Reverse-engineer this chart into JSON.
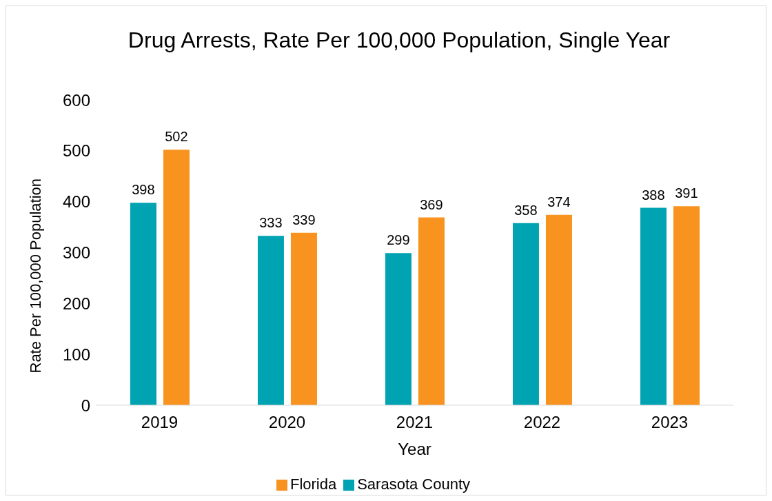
{
  "chart_data": {
    "type": "bar",
    "title": "Drug Arrests, Rate Per 100,000 Population, Single Year",
    "xlabel": "Year",
    "ylabel": "Rate Per 100,000 Population",
    "categories": [
      "2019",
      "2020",
      "2021",
      "2022",
      "2023"
    ],
    "series": [
      {
        "name": "Sarasota County",
        "color": "#00a3b1",
        "values": [
          398,
          333,
          299,
          358,
          388
        ]
      },
      {
        "name": "Florida",
        "color": "#f7931e",
        "values": [
          502,
          339,
          369,
          374,
          391
        ]
      }
    ],
    "ylim": [
      0,
      600
    ],
    "yticks": [
      0,
      100,
      200,
      300,
      400,
      500,
      600
    ],
    "grid": false,
    "legend": "bottom",
    "data_labels": true
  }
}
